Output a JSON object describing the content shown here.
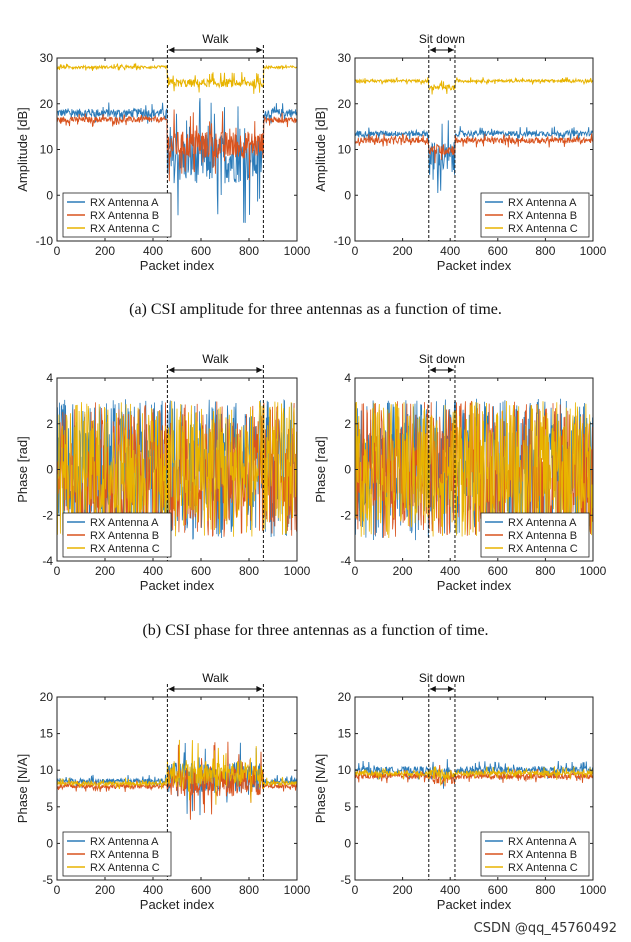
{
  "colors": {
    "a": "#2b7bb9",
    "b": "#d9531e",
    "c": "#e8b400"
  },
  "captions": [
    "(a) CSI amplitude for three antennas as a function of time.",
    "(b) CSI phase for three antennas as a function of time.",
    ""
  ],
  "watermark": "CSDN @qq_45760492",
  "chart_data": [
    {
      "id": "amp-walk",
      "type": "line",
      "ylabel": "Amplitude [dB]",
      "xlabel": "Packet index",
      "xlim": [
        0,
        1000
      ],
      "ylim": [
        -10,
        30
      ],
      "xticks": [
        0,
        200,
        400,
        600,
        800,
        1000
      ],
      "yticks": [
        -10,
        0,
        10,
        20,
        30
      ],
      "event": {
        "label": "Walk",
        "start": 460,
        "end": 860
      },
      "legend": [
        "RX Antenna A",
        "RX Antenna B",
        "RX Antenna C"
      ],
      "series": [
        {
          "name": "RX Antenna A",
          "base": 18,
          "noise": 1.5,
          "event_base": 8,
          "event_noise": 9
        },
        {
          "name": "RX Antenna B",
          "base": 16.5,
          "noise": 1,
          "event_base": 11,
          "event_noise": 5
        },
        {
          "name": "RX Antenna C",
          "base": 28,
          "noise": 0.5,
          "event_base": 24.5,
          "event_noise": 1.5
        }
      ]
    },
    {
      "id": "amp-sit",
      "type": "line",
      "ylabel": "Amplitude [dB]",
      "xlabel": "Packet index",
      "xlim": [
        0,
        1000
      ],
      "ylim": [
        -10,
        30
      ],
      "xticks": [
        0,
        200,
        400,
        600,
        800,
        1000
      ],
      "yticks": [
        -10,
        0,
        10,
        20,
        30
      ],
      "event": {
        "label": "Sit down",
        "start": 310,
        "end": 420
      },
      "legend": [
        "RX Antenna A",
        "RX Antenna B",
        "RX Antenna C"
      ],
      "series": [
        {
          "name": "RX Antenna A",
          "base": 13.5,
          "noise": 1,
          "event_base": 8,
          "event_noise": 6
        },
        {
          "name": "RX Antenna B",
          "base": 12,
          "noise": 1,
          "event_base": 10,
          "event_noise": 2
        },
        {
          "name": "RX Antenna C",
          "base": 25,
          "noise": 0.5,
          "event_base": 23.5,
          "event_noise": 1
        }
      ]
    },
    {
      "id": "phase-walk",
      "type": "line",
      "ylabel": "Phase [rad]",
      "xlabel": "Packet index",
      "xlim": [
        0,
        1000
      ],
      "ylim": [
        -4,
        4
      ],
      "xticks": [
        0,
        200,
        400,
        600,
        800,
        1000
      ],
      "yticks": [
        -4,
        -2,
        0,
        2,
        4
      ],
      "event": {
        "label": "Walk",
        "start": 460,
        "end": 860
      },
      "legend": [
        "RX Antenna A",
        "RX Antenna B",
        "RX Antenna C"
      ],
      "series": [
        {
          "name": "RX Antenna A",
          "base": 0,
          "noise": 3.1,
          "event_base": 0,
          "event_noise": 3.1
        },
        {
          "name": "RX Antenna B",
          "base": 0,
          "noise": 3.0,
          "event_base": 0,
          "event_noise": 3.0
        },
        {
          "name": "RX Antenna C",
          "base": 0,
          "noise": 3.0,
          "event_base": 0,
          "event_noise": 3.0
        }
      ]
    },
    {
      "id": "phase-sit",
      "type": "line",
      "ylabel": "Phase [rad]",
      "xlabel": "Packet index",
      "xlim": [
        0,
        1000
      ],
      "ylim": [
        -4,
        4
      ],
      "xticks": [
        0,
        200,
        400,
        600,
        800,
        1000
      ],
      "yticks": [
        -4,
        -2,
        0,
        2,
        4
      ],
      "event": {
        "label": "Sit down",
        "start": 310,
        "end": 420
      },
      "legend": [
        "RX Antenna A",
        "RX Antenna B",
        "RX Antenna C"
      ],
      "series": [
        {
          "name": "RX Antenna A",
          "base": 0,
          "noise": 3.1,
          "event_base": 0,
          "event_noise": 3.1
        },
        {
          "name": "RX Antenna B",
          "base": 0,
          "noise": 3.0,
          "event_base": 0,
          "event_noise": 3.0
        },
        {
          "name": "RX Antenna C",
          "base": 0,
          "noise": 3.0,
          "event_base": 0,
          "event_noise": 3.0
        }
      ]
    },
    {
      "id": "san-walk",
      "type": "line",
      "ylabel": "Phase [N/A]",
      "xlabel": "Packet index",
      "xlim": [
        0,
        1000
      ],
      "ylim": [
        -5,
        20
      ],
      "xticks": [
        0,
        200,
        400,
        600,
        800,
        1000
      ],
      "yticks": [
        -5,
        0,
        5,
        10,
        15,
        20
      ],
      "event": {
        "label": "Walk",
        "start": 460,
        "end": 860
      },
      "legend": [
        "RX Antenna A",
        "RX Antenna B",
        "RX Antenna C"
      ],
      "series": [
        {
          "name": "RX Antenna A",
          "base": 8.5,
          "noise": 0.6,
          "event_base": 9,
          "event_noise": 3.5
        },
        {
          "name": "RX Antenna B",
          "base": 7.8,
          "noise": 0.5,
          "event_base": 8.5,
          "event_noise": 3.5
        },
        {
          "name": "RX Antenna C",
          "base": 8.2,
          "noise": 0.5,
          "event_base": 9.5,
          "event_noise": 3
        }
      ]
    },
    {
      "id": "san-sit",
      "type": "line",
      "ylabel": "Phase [N/A]",
      "xlabel": "Packet index",
      "xlim": [
        0,
        1000
      ],
      "ylim": [
        -5,
        20
      ],
      "xticks": [
        0,
        200,
        400,
        600,
        800,
        1000
      ],
      "yticks": [
        -5,
        0,
        5,
        10,
        15,
        20
      ],
      "event": {
        "label": "Sit down",
        "start": 310,
        "end": 420
      },
      "legend": [
        "RX Antenna A",
        "RX Antenna B",
        "RX Antenna C"
      ],
      "series": [
        {
          "name": "RX Antenna A",
          "base": 10,
          "noise": 0.8,
          "event_base": 9.5,
          "event_noise": 1.5
        },
        {
          "name": "RX Antenna B",
          "base": 9.2,
          "noise": 0.6,
          "event_base": 8.8,
          "event_noise": 1.2
        },
        {
          "name": "RX Antenna C",
          "base": 9.6,
          "noise": 0.6,
          "event_base": 9.4,
          "event_noise": 1.2
        }
      ]
    }
  ]
}
